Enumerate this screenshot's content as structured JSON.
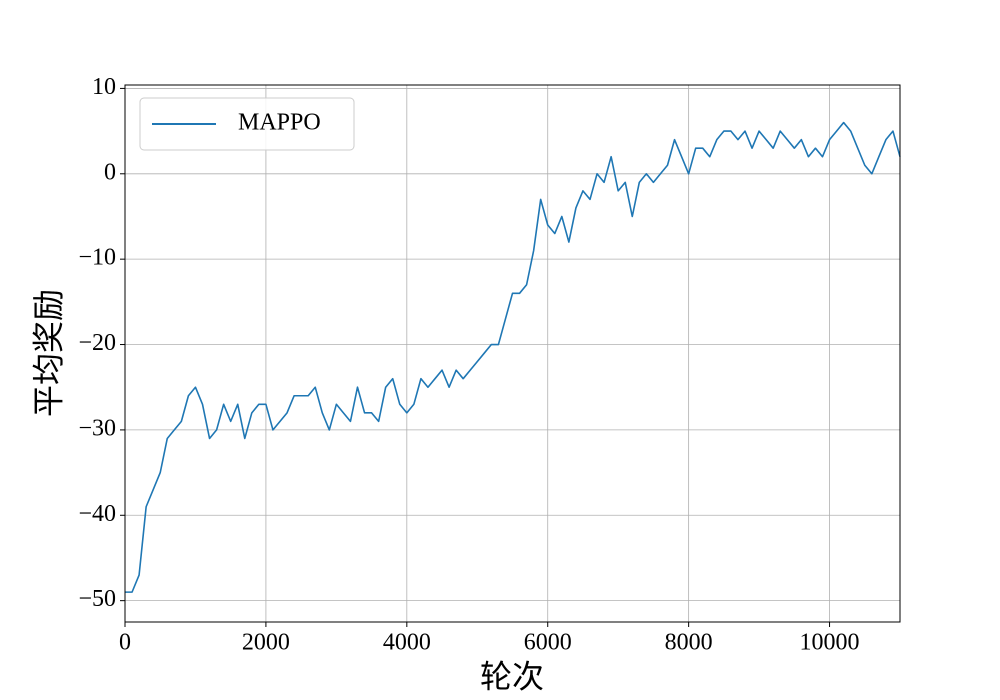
{
  "chart_data": {
    "type": "line",
    "xlabel": "轮次",
    "ylabel": "平均奖励",
    "x": [
      0,
      100,
      200,
      300,
      400,
      500,
      600,
      700,
      800,
      900,
      1000,
      1100,
      1200,
      1300,
      1400,
      1500,
      1600,
      1700,
      1800,
      1900,
      2000,
      2100,
      2200,
      2300,
      2400,
      2500,
      2600,
      2700,
      2800,
      2900,
      3000,
      3100,
      3200,
      3300,
      3400,
      3500,
      3600,
      3700,
      3800,
      3900,
      4000,
      4100,
      4200,
      4300,
      4400,
      4500,
      4600,
      4700,
      4800,
      4900,
      5000,
      5100,
      5200,
      5300,
      5400,
      5500,
      5600,
      5700,
      5800,
      5900,
      6000,
      6100,
      6200,
      6300,
      6400,
      6500,
      6600,
      6700,
      6800,
      6900,
      7000,
      7100,
      7200,
      7300,
      7400,
      7500,
      7600,
      7700,
      7800,
      7900,
      8000,
      8100,
      8200,
      8300,
      8400,
      8500,
      8600,
      8700,
      8800,
      8900,
      9000,
      9100,
      9200,
      9300,
      9400,
      9500,
      9600,
      9700,
      9800,
      9900,
      10000,
      10100,
      10200,
      10300,
      10400,
      10500,
      10600,
      10700,
      10800,
      10900,
      11000
    ],
    "series": [
      {
        "name": "MAPPO",
        "color": "#1f77b4",
        "values": [
          -49,
          -49,
          -47,
          -39,
          -37,
          -35,
          -31,
          -30,
          -29,
          -26,
          -25,
          -27,
          -31,
          -30,
          -27,
          -29,
          -27,
          -31,
          -28,
          -27,
          -27,
          -30,
          -29,
          -28,
          -26,
          -26,
          -26,
          -25,
          -28,
          -30,
          -27,
          -28,
          -29,
          -25,
          -28,
          -28,
          -29,
          -25,
          -24,
          -27,
          -28,
          -27,
          -24,
          -25,
          -24,
          -23,
          -25,
          -23,
          -24,
          -23,
          -22,
          -21,
          -20,
          -20,
          -17,
          -14,
          -14,
          -13,
          -9,
          -3,
          -6,
          -7,
          -5,
          -8,
          -4,
          -2,
          -3,
          0,
          -1,
          2,
          -2,
          -1,
          -5,
          -1,
          0,
          -1,
          0,
          1,
          4,
          2,
          0,
          3,
          3,
          2,
          4,
          5,
          5,
          4,
          5,
          3,
          5,
          4,
          3,
          5,
          4,
          3,
          4,
          2,
          3,
          2,
          4,
          5,
          6,
          5,
          3,
          1,
          0,
          2,
          4,
          5,
          2
        ]
      }
    ],
    "xlim": [
      0,
      11000
    ],
    "xticks": [
      0,
      2000,
      4000,
      6000,
      8000,
      10000
    ],
    "ylim": [
      -52.5,
      10.4
    ],
    "yticks": [
      {
        "value": -50,
        "label": "−50"
      },
      {
        "value": -40,
        "label": "−40"
      },
      {
        "value": -30,
        "label": "−30"
      },
      {
        "value": -20,
        "label": "−20"
      },
      {
        "value": -10,
        "label": "−10"
      },
      0,
      10
    ],
    "grid": true,
    "legend": "upper left"
  }
}
